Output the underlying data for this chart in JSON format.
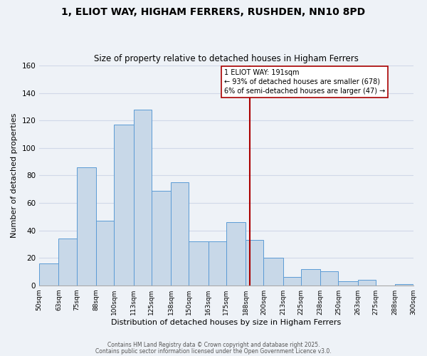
{
  "title": "1, ELIOT WAY, HIGHAM FERRERS, RUSHDEN, NN10 8PD",
  "subtitle": "Size of property relative to detached houses in Higham Ferrers",
  "xlabel": "Distribution of detached houses by size in Higham Ferrers",
  "ylabel": "Number of detached properties",
  "bar_edges": [
    50,
    63,
    75,
    88,
    100,
    113,
    125,
    138,
    150,
    163,
    175,
    188,
    200,
    213,
    225,
    238,
    250,
    263,
    275,
    288,
    300
  ],
  "bar_heights": [
    16,
    34,
    86,
    47,
    117,
    128,
    69,
    75,
    32,
    32,
    46,
    33,
    20,
    6,
    12,
    10,
    3,
    4,
    0,
    1
  ],
  "bar_color": "#c8d8e8",
  "bar_edge_color": "#5b9bd5",
  "ylim": [
    0,
    160
  ],
  "yticks": [
    0,
    20,
    40,
    60,
    80,
    100,
    120,
    140,
    160
  ],
  "vline_x": 191,
  "vline_color": "#aa0000",
  "annotation_line1": "1 ELIOT WAY: 191sqm",
  "annotation_line2": "← 93% of detached houses are smaller (678)",
  "annotation_line3": "6% of semi-detached houses are larger (47) →",
  "footer1": "Contains HM Land Registry data © Crown copyright and database right 2025.",
  "footer2": "Contains public sector information licensed under the Open Government Licence v3.0.",
  "background_color": "#eef2f7",
  "grid_color": "#d0d8e8",
  "title_fontsize": 10,
  "subtitle_fontsize": 8.5,
  "tick_labels": [
    "50sqm",
    "63sqm",
    "75sqm",
    "88sqm",
    "100sqm",
    "113sqm",
    "125sqm",
    "138sqm",
    "150sqm",
    "163sqm",
    "175sqm",
    "188sqm",
    "200sqm",
    "213sqm",
    "225sqm",
    "238sqm",
    "250sqm",
    "263sqm",
    "275sqm",
    "288sqm",
    "300sqm"
  ]
}
